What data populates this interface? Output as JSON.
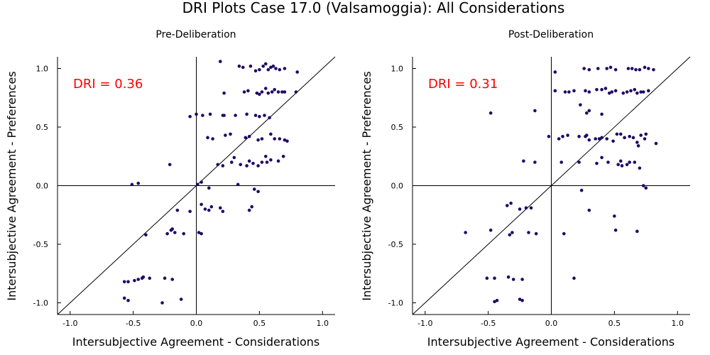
{
  "title": "DRI Plots Case 17.0 (Valsamoggia): All Considerations",
  "colors": {
    "point": "#1f0a66",
    "dri_text": "#ff0000",
    "axis": "#000000"
  },
  "chart_data": [
    {
      "type": "scatter",
      "subtitle": "Pre-Deliberation",
      "xlabel": "Intersubjective Agreement - Considerations",
      "ylabel": "Intersubjective Agreement - Preferences",
      "xlim": [
        -1.1,
        1.1
      ],
      "ylim": [
        -1.1,
        1.1
      ],
      "xticks": [
        "-1.0",
        "-0.5",
        "0.0",
        "0.5",
        "1.0"
      ],
      "yticks": [
        "-1.0",
        "-0.5",
        "0.0",
        "0.5",
        "1.0"
      ],
      "grid": false,
      "annotation": "DRI = 0.36",
      "points": [
        [
          0.19,
          1.06
        ],
        [
          0.34,
          1.02
        ],
        [
          0.37,
          1.01
        ],
        [
          0.43,
          1.02
        ],
        [
          0.47,
          0.98
        ],
        [
          0.5,
          0.99
        ],
        [
          0.53,
          1.02
        ],
        [
          0.55,
          1.04
        ],
        [
          0.57,
          0.99
        ],
        [
          0.59,
          1.01
        ],
        [
          0.61,
          1.02
        ],
        [
          0.63,
          1.0
        ],
        [
          0.66,
          0.99
        ],
        [
          0.7,
          1.0
        ],
        [
          0.8,
          0.97
        ],
        [
          0.22,
          0.79
        ],
        [
          0.38,
          0.8
        ],
        [
          0.41,
          0.81
        ],
        [
          0.48,
          0.79
        ],
        [
          0.5,
          0.78
        ],
        [
          0.52,
          0.8
        ],
        [
          0.55,
          0.83
        ],
        [
          0.57,
          0.79
        ],
        [
          0.6,
          0.8
        ],
        [
          0.62,
          0.82
        ],
        [
          0.65,
          0.8
        ],
        [
          0.68,
          0.8
        ],
        [
          0.7,
          0.8
        ],
        [
          0.79,
          0.8
        ],
        [
          -0.05,
          0.59
        ],
        [
          0.0,
          0.61
        ],
        [
          0.05,
          0.6
        ],
        [
          0.11,
          0.61
        ],
        [
          0.21,
          0.6
        ],
        [
          0.22,
          0.6
        ],
        [
          0.31,
          0.6
        ],
        [
          0.4,
          0.61
        ],
        [
          0.47,
          0.6
        ],
        [
          0.5,
          0.59
        ],
        [
          0.54,
          0.6
        ],
        [
          0.58,
          0.58
        ],
        [
          0.09,
          0.41
        ],
        [
          0.13,
          0.4
        ],
        [
          0.23,
          0.43
        ],
        [
          0.27,
          0.44
        ],
        [
          0.39,
          0.41
        ],
        [
          0.42,
          0.42
        ],
        [
          0.49,
          0.39
        ],
        [
          0.52,
          0.4
        ],
        [
          0.59,
          0.44
        ],
        [
          0.62,
          0.4
        ],
        [
          0.66,
          0.4
        ],
        [
          0.7,
          0.39
        ],
        [
          0.72,
          0.38
        ],
        [
          -0.21,
          0.18
        ],
        [
          0.17,
          0.18
        ],
        [
          0.21,
          0.17
        ],
        [
          0.28,
          0.2
        ],
        [
          0.3,
          0.24
        ],
        [
          0.35,
          0.18
        ],
        [
          0.4,
          0.17
        ],
        [
          0.42,
          0.21
        ],
        [
          0.45,
          0.19
        ],
        [
          0.49,
          0.17
        ],
        [
          0.52,
          0.2
        ],
        [
          0.55,
          0.25
        ],
        [
          0.56,
          0.2
        ],
        [
          0.59,
          0.22
        ],
        [
          0.65,
          0.21
        ],
        [
          0.69,
          0.25
        ],
        [
          -0.51,
          0.01
        ],
        [
          -0.46,
          0.02
        ],
        [
          0.01,
          0.01
        ],
        [
          0.04,
          0.03
        ],
        [
          0.1,
          -0.02
        ],
        [
          0.33,
          0.01
        ],
        [
          0.46,
          -0.03
        ],
        [
          0.49,
          -0.05
        ],
        [
          0.04,
          -0.16
        ],
        [
          0.07,
          -0.2
        ],
        [
          0.1,
          -0.21
        ],
        [
          0.12,
          -0.18
        ],
        [
          0.19,
          -0.19
        ],
        [
          0.21,
          -0.22
        ],
        [
          0.42,
          -0.21
        ],
        [
          0.44,
          -0.18
        ],
        [
          -0.15,
          -0.21
        ],
        [
          -0.05,
          -0.22
        ],
        [
          -0.4,
          -0.42
        ],
        [
          -0.23,
          -0.41
        ],
        [
          -0.2,
          -0.38
        ],
        [
          -0.17,
          -0.4
        ],
        [
          -0.19,
          -0.37
        ],
        [
          -0.1,
          -0.41
        ],
        [
          0.02,
          -0.4
        ],
        [
          0.04,
          -0.41
        ],
        [
          -0.57,
          -0.82
        ],
        [
          -0.54,
          -0.82
        ],
        [
          -0.49,
          -0.81
        ],
        [
          -0.46,
          -0.8
        ],
        [
          -0.43,
          -0.79
        ],
        [
          -0.42,
          -0.78
        ],
        [
          -0.37,
          -0.79
        ],
        [
          -0.25,
          -0.79
        ],
        [
          -0.19,
          -0.8
        ],
        [
          -0.57,
          -0.96
        ],
        [
          -0.54,
          -0.98
        ],
        [
          -0.27,
          -1.0
        ],
        [
          -0.12,
          -0.97
        ]
      ]
    },
    {
      "type": "scatter",
      "subtitle": "Post-Deliberation",
      "xlabel": "Intersubjective Agreement - Considerations",
      "ylabel": "Intersubjective Agreement - Preferences",
      "xlim": [
        -1.1,
        1.1
      ],
      "ylim": [
        -1.1,
        1.1
      ],
      "xticks": [
        "-1.0",
        "-0.5",
        "0.0",
        "0.5",
        "1.0"
      ],
      "yticks": [
        "-1.0",
        "-0.5",
        "0.0",
        "0.5",
        "1.0"
      ],
      "grid": false,
      "annotation": "DRI = 0.31",
      "points": [
        [
          0.26,
          1.0
        ],
        [
          0.3,
          0.99
        ],
        [
          0.37,
          1.0
        ],
        [
          0.44,
          1.0
        ],
        [
          0.47,
          1.01
        ],
        [
          0.51,
          0.99
        ],
        [
          0.61,
          1.0
        ],
        [
          0.64,
          1.0
        ],
        [
          0.67,
          0.99
        ],
        [
          0.7,
          0.99
        ],
        [
          0.74,
          1.01
        ],
        [
          0.77,
          1.0
        ],
        [
          0.81,
          0.99
        ],
        [
          0.03,
          0.97
        ],
        [
          0.03,
          0.81
        ],
        [
          0.11,
          0.8
        ],
        [
          0.14,
          0.8
        ],
        [
          0.18,
          0.81
        ],
        [
          0.27,
          0.81
        ],
        [
          0.3,
          0.8
        ],
        [
          0.36,
          0.82
        ],
        [
          0.4,
          0.82
        ],
        [
          0.43,
          0.83
        ],
        [
          0.46,
          0.79
        ],
        [
          0.48,
          0.8
        ],
        [
          0.51,
          0.81
        ],
        [
          0.57,
          0.79
        ],
        [
          0.6,
          0.8
        ],
        [
          0.63,
          0.81
        ],
        [
          0.66,
          0.82
        ],
        [
          0.68,
          0.79
        ],
        [
          0.71,
          0.8
        ],
        [
          0.73,
          0.8
        ],
        [
          0.77,
          0.81
        ],
        [
          -0.48,
          0.62
        ],
        [
          -0.13,
          0.64
        ],
        [
          0.23,
          0.69
        ],
        [
          0.3,
          0.64
        ],
        [
          0.28,
          0.62
        ],
        [
          0.4,
          0.61
        ],
        [
          -0.02,
          0.42
        ],
        [
          0.06,
          0.4
        ],
        [
          0.09,
          0.42
        ],
        [
          0.13,
          0.43
        ],
        [
          0.22,
          0.42
        ],
        [
          0.27,
          0.42
        ],
        [
          0.28,
          0.43
        ],
        [
          0.3,
          0.39
        ],
        [
          0.35,
          0.4
        ],
        [
          0.38,
          0.4
        ],
        [
          0.4,
          0.41
        ],
        [
          0.44,
          0.4
        ],
        [
          0.49,
          0.38
        ],
        [
          0.52,
          0.44
        ],
        [
          0.55,
          0.44
        ],
        [
          0.58,
          0.41
        ],
        [
          0.62,
          0.42
        ],
        [
          0.65,
          0.41
        ],
        [
          0.68,
          0.37
        ],
        [
          0.71,
          0.43
        ],
        [
          0.74,
          0.4
        ],
        [
          0.75,
          0.44
        ],
        [
          0.69,
          0.34
        ],
        [
          0.83,
          0.36
        ],
        [
          -0.22,
          0.21
        ],
        [
          -0.13,
          0.2
        ],
        [
          0.08,
          0.2
        ],
        [
          0.22,
          0.2
        ],
        [
          0.36,
          0.19
        ],
        [
          0.4,
          0.24
        ],
        [
          0.45,
          0.2
        ],
        [
          0.53,
          0.18
        ],
        [
          0.55,
          0.21
        ],
        [
          0.56,
          0.17
        ],
        [
          0.6,
          0.18
        ],
        [
          0.62,
          0.2
        ],
        [
          0.66,
          0.2
        ],
        [
          0.7,
          0.15
        ],
        [
          0.24,
          -0.04
        ],
        [
          0.73,
          0.0
        ],
        [
          0.75,
          -0.02
        ],
        [
          -0.32,
          -0.15
        ],
        [
          -0.35,
          -0.17
        ],
        [
          -0.25,
          -0.2
        ],
        [
          -0.2,
          -0.19
        ],
        [
          -0.16,
          -0.19
        ],
        [
          0.3,
          -0.21
        ],
        [
          0.5,
          -0.26
        ],
        [
          -0.68,
          -0.4
        ],
        [
          -0.48,
          -0.38
        ],
        [
          -0.33,
          -0.42
        ],
        [
          -0.31,
          -0.4
        ],
        [
          -0.18,
          -0.4
        ],
        [
          -0.12,
          -0.41
        ],
        [
          0.1,
          -0.41
        ],
        [
          0.51,
          -0.38
        ],
        [
          0.68,
          -0.39
        ],
        [
          -0.51,
          -0.79
        ],
        [
          -0.45,
          -0.79
        ],
        [
          -0.34,
          -0.78
        ],
        [
          -0.3,
          -0.8
        ],
        [
          -0.23,
          -0.8
        ],
        [
          0.18,
          -0.79
        ],
        [
          -0.43,
          -0.98
        ],
        [
          -0.45,
          -0.99
        ],
        [
          -0.25,
          -0.97
        ],
        [
          -0.23,
          -0.98
        ]
      ]
    }
  ]
}
